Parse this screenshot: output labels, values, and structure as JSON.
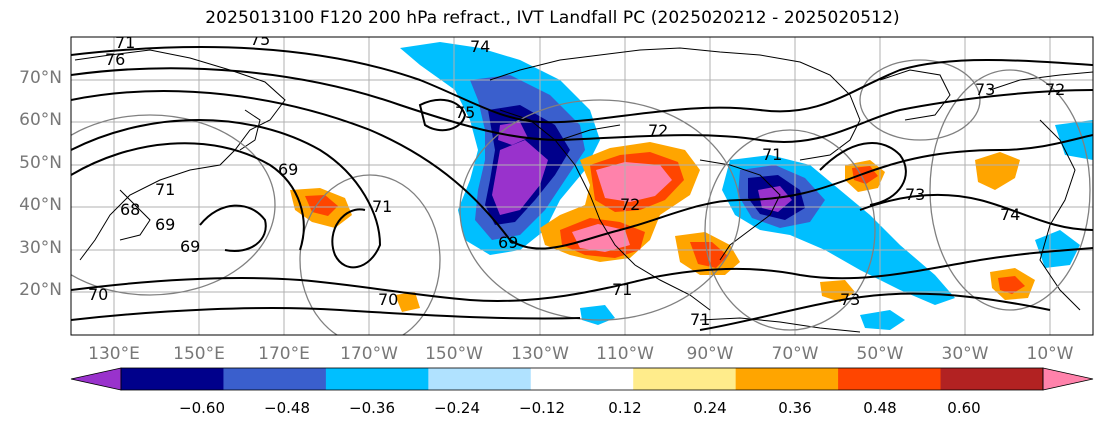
{
  "title": "2025013100 F120 200 hPa refract., IVT Landfall PC (2025020212 - 2025020512)",
  "latitude_labels": [
    "70°N",
    "60°N",
    "50°N",
    "40°N",
    "30°N",
    "20°N"
  ],
  "longitude_labels": [
    "130°E",
    "150°E",
    "170°E",
    "170°W",
    "150°W",
    "130°W",
    "110°W",
    "90°W",
    "70°W",
    "50°W",
    "30°W",
    "10°W"
  ],
  "colorbar": {
    "ticks": [
      "−0.60",
      "−0.48",
      "−0.36",
      "−0.24",
      "−0.12",
      "0.12",
      "0.24",
      "0.36",
      "0.48",
      "0.60"
    ],
    "colors": [
      "#9932cc",
      "#00008b",
      "#3a5fcd",
      "#00bfff",
      "#b0e2ff",
      "#ffffff",
      "#ffec8b",
      "#ffa500",
      "#ff4500",
      "#b22222",
      "#ff82ab"
    ]
  },
  "contour_labels": [
    "74",
    "75",
    "72",
    "71",
    "73",
    "72",
    "75",
    "76",
    "71",
    "69",
    "69",
    "68",
    "69",
    "71",
    "70",
    "70",
    "69",
    "71",
    "71",
    "71",
    "73",
    "74",
    "73",
    "72"
  ],
  "colors": {
    "contour": "#000000",
    "composite": "#808080",
    "grid": "#b0b0b0",
    "coast": "#000000"
  }
}
